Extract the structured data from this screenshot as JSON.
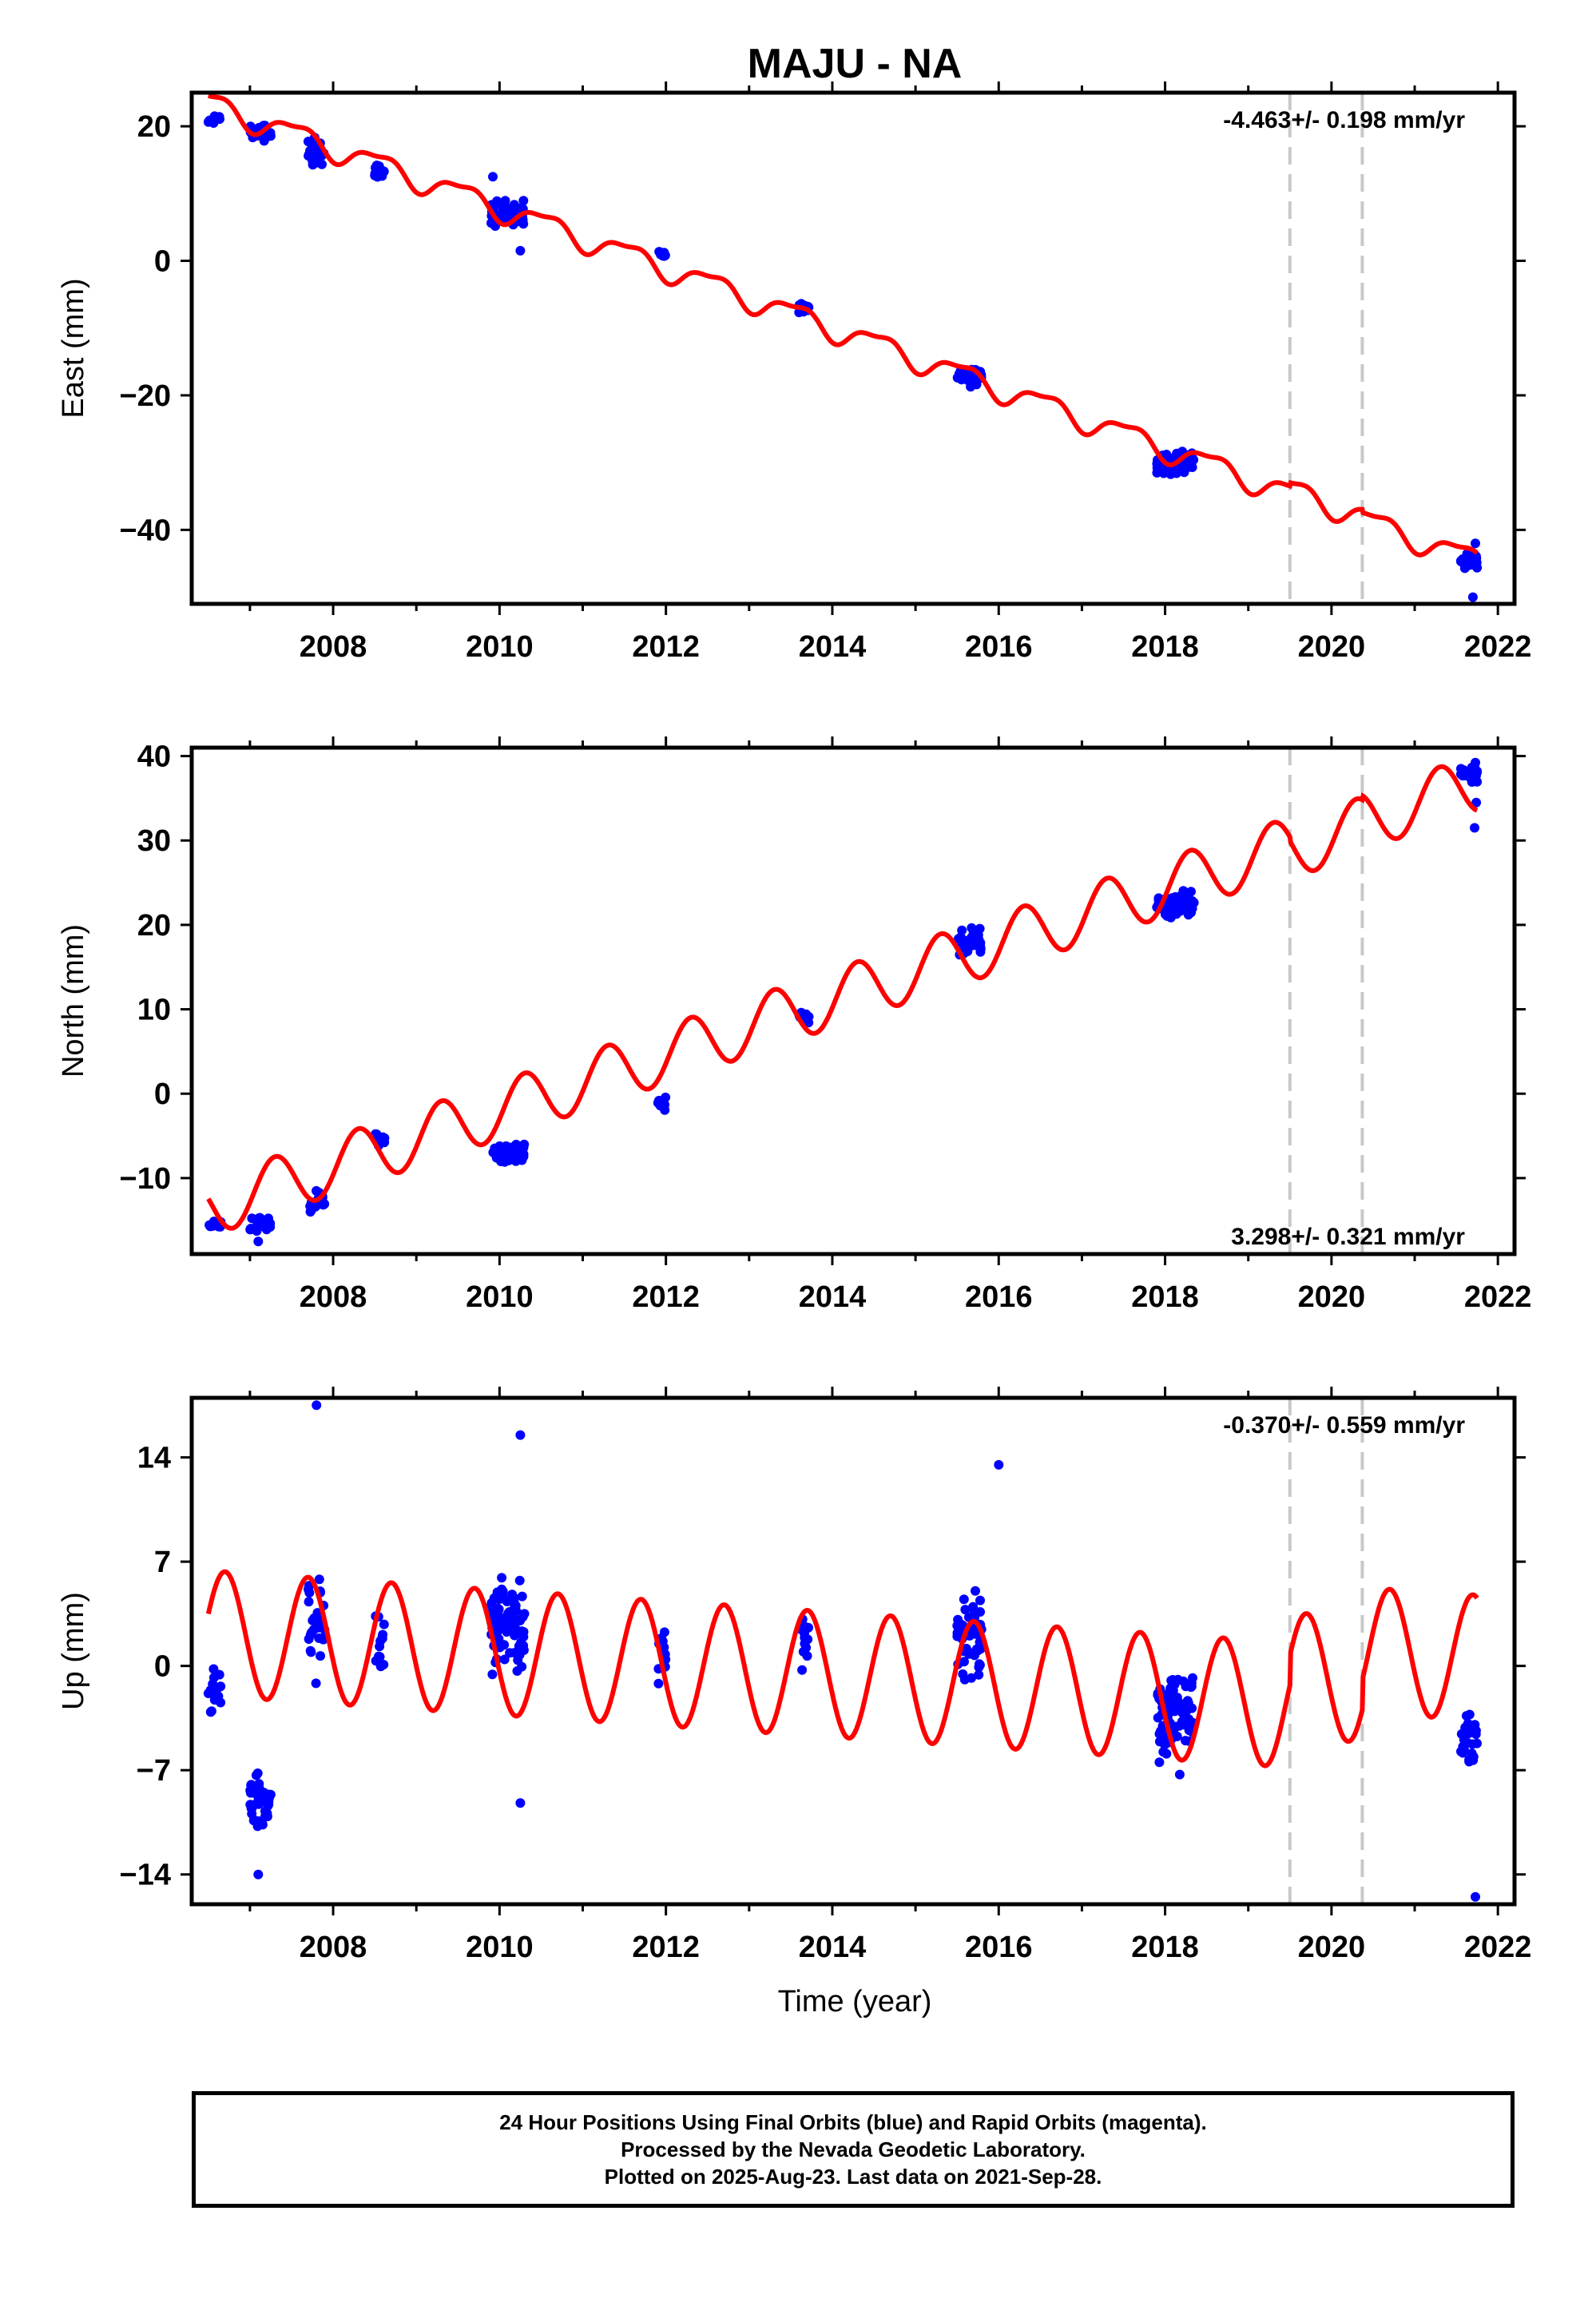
{
  "title": "MAJU - NA",
  "xlabel": "Time (year)",
  "footer": {
    "line1": "24 Hour Positions Using Final Orbits (blue) and Rapid Orbits (magenta).",
    "line2": "Processed by the Nevada Geodetic Laboratory.",
    "line3": "Plotted on 2025-Aug-23. Last data on 2021-Sep-28."
  },
  "colors": {
    "data": "#0000ff",
    "model": "#ff0000",
    "breaks": "#c8c8c8"
  },
  "chart_data": [
    {
      "type": "scatter",
      "name": "east",
      "ylabel": "East (mm)",
      "rate": "-4.463+/- 0.198 mm/yr",
      "rate_position": "top-right",
      "xlim": [
        2006.3,
        2022.2
      ],
      "ylim": [
        -51,
        25
      ],
      "xticks": [
        2008,
        2010,
        2012,
        2014,
        2016,
        2018,
        2020,
        2022
      ],
      "yticks": [
        20,
        0,
        -20,
        -40
      ],
      "ytick_labels": [
        "20",
        "0",
        "−20",
        "−40"
      ],
      "equipment_breaks": [
        2019.5,
        2020.37
      ],
      "model": {
        "intercept": 23.5,
        "trend": -4.463,
        "t0": 2006.5,
        "offsets": [
          [
            2019.5,
            0.5
          ],
          [
            2020.37,
            -0.5
          ]
        ],
        "seasonal": [
          {
            "amp": 1.7,
            "period": 1.0,
            "phase": 0.2
          },
          {
            "amp": 0.6,
            "period": 0.5,
            "phase": 0.7
          }
        ]
      },
      "data_epochs": [
        {
          "t0": 2006.5,
          "t1": 2006.65,
          "n": 14,
          "mean": 21.0,
          "spread": 1.4
        },
        {
          "t0": 2007.0,
          "t1": 2007.25,
          "n": 22,
          "mean": 19.0,
          "spread": 2.0
        },
        {
          "t0": 2007.7,
          "t1": 2007.9,
          "n": 28,
          "mean": 16.0,
          "spread": 2.8
        },
        {
          "t0": 2008.5,
          "t1": 2008.62,
          "n": 12,
          "mean": 13.5,
          "spread": 2.0
        },
        {
          "t0": 2009.9,
          "t1": 2010.3,
          "n": 60,
          "mean": 7.0,
          "spread": 2.5
        },
        {
          "t0": 2011.9,
          "t1": 2012.0,
          "n": 10,
          "mean": 1.0,
          "spread": 1.1
        },
        {
          "t0": 2013.6,
          "t1": 2013.72,
          "n": 12,
          "mean": -7.0,
          "spread": 1.1
        },
        {
          "t0": 2015.5,
          "t1": 2015.8,
          "n": 40,
          "mean": -17.0,
          "spread": 1.6
        },
        {
          "t0": 2017.9,
          "t1": 2018.35,
          "n": 80,
          "mean": -30.0,
          "spread": 2.5
        },
        {
          "t0": 2021.55,
          "t1": 2021.75,
          "n": 26,
          "mean": -44.5,
          "spread": 1.8
        }
      ],
      "outliers": [
        [
          2009.92,
          12.5
        ],
        [
          2010.25,
          1.5
        ],
        [
          2021.7,
          -50.0
        ],
        [
          2021.73,
          -42.0
        ]
      ]
    },
    {
      "type": "scatter",
      "name": "north",
      "ylabel": "North (mm)",
      "rate": "3.298+/- 0.321 mm/yr",
      "rate_position": "bottom-right",
      "xlim": [
        2006.3,
        2022.2
      ],
      "ylim": [
        -19,
        41
      ],
      "xticks": [
        2008,
        2010,
        2012,
        2014,
        2016,
        2018,
        2020,
        2022
      ],
      "yticks": [
        40,
        30,
        20,
        10,
        0,
        -10
      ],
      "ytick_labels": [
        "40",
        "30",
        "20",
        "10",
        "0",
        "−10"
      ],
      "equipment_breaks": [
        2019.5,
        2020.37
      ],
      "model": {
        "intercept": -13.5,
        "trend": 3.298,
        "t0": 2006.5,
        "offsets": [
          [
            2019.5,
            -0.5
          ],
          [
            2020.37,
            0.5
          ]
        ],
        "seasonal": [
          {
            "amp": 3.4,
            "period": 1.0,
            "phase": 0.45
          }
        ]
      },
      "data_epochs": [
        {
          "t0": 2006.5,
          "t1": 2006.65,
          "n": 14,
          "mean": -15.5,
          "spread": 1.1
        },
        {
          "t0": 2007.0,
          "t1": 2007.25,
          "n": 22,
          "mean": -15.5,
          "spread": 1.4
        },
        {
          "t0": 2007.7,
          "t1": 2007.9,
          "n": 20,
          "mean": -13.0,
          "spread": 1.8
        },
        {
          "t0": 2008.5,
          "t1": 2008.62,
          "n": 12,
          "mean": -5.5,
          "spread": 1.2
        },
        {
          "t0": 2009.9,
          "t1": 2010.3,
          "n": 60,
          "mean": -7.0,
          "spread": 1.5
        },
        {
          "t0": 2011.9,
          "t1": 2012.0,
          "n": 10,
          "mean": -1.0,
          "spread": 1.2
        },
        {
          "t0": 2013.6,
          "t1": 2013.72,
          "n": 12,
          "mean": 9.0,
          "spread": 1.1
        },
        {
          "t0": 2015.5,
          "t1": 2015.8,
          "n": 40,
          "mean": 18.0,
          "spread": 2.0
        },
        {
          "t0": 2017.9,
          "t1": 2018.35,
          "n": 80,
          "mean": 22.5,
          "spread": 1.8
        },
        {
          "t0": 2021.55,
          "t1": 2021.75,
          "n": 26,
          "mean": 38.0,
          "spread": 1.3
        }
      ],
      "outliers": [
        [
          2021.72,
          31.5
        ],
        [
          2021.74,
          34.5
        ],
        [
          2007.1,
          -17.5
        ]
      ]
    },
    {
      "type": "scatter",
      "name": "up",
      "ylabel": "Up (mm)",
      "rate": "-0.370+/- 0.559 mm/yr",
      "rate_position": "top-right",
      "xlim": [
        2006.3,
        2022.2
      ],
      "ylim": [
        -16,
        18
      ],
      "xticks": [
        2008,
        2010,
        2012,
        2014,
        2016,
        2018,
        2020,
        2022
      ],
      "yticks": [
        14,
        7,
        0,
        -7,
        -14
      ],
      "ytick_labels": [
        "14",
        "7",
        "0",
        "−7",
        "−14"
      ],
      "equipment_breaks": [
        2019.5,
        2020.37
      ],
      "model": {
        "intercept": 2.2,
        "trend": -0.37,
        "t0": 2006.5,
        "offsets": [
          [
            2019.5,
            2.0
          ],
          [
            2020.37,
            2.0
          ]
        ],
        "seasonal": [
          {
            "amp": 4.2,
            "period": 1.0,
            "phase": 0.05
          }
        ]
      },
      "data_epochs": [
        {
          "t0": 2006.5,
          "t1": 2006.65,
          "n": 14,
          "mean": -1.5,
          "spread": 2.5
        },
        {
          "t0": 2007.0,
          "t1": 2007.25,
          "n": 45,
          "mean": -9.0,
          "spread": 2.5
        },
        {
          "t0": 2007.7,
          "t1": 2007.9,
          "n": 30,
          "mean": 3.0,
          "spread": 5.0
        },
        {
          "t0": 2008.5,
          "t1": 2008.62,
          "n": 14,
          "mean": 1.0,
          "spread": 3.5
        },
        {
          "t0": 2009.9,
          "t1": 2010.3,
          "n": 90,
          "mean": 3.0,
          "spread": 4.5
        },
        {
          "t0": 2011.9,
          "t1": 2012.0,
          "n": 12,
          "mean": 1.0,
          "spread": 3.0
        },
        {
          "t0": 2013.6,
          "t1": 2013.72,
          "n": 14,
          "mean": 2.0,
          "spread": 2.5
        },
        {
          "t0": 2015.5,
          "t1": 2015.8,
          "n": 50,
          "mean": 2.0,
          "spread": 3.8
        },
        {
          "t0": 2017.9,
          "t1": 2018.35,
          "n": 90,
          "mean": -3.0,
          "spread": 3.8
        },
        {
          "t0": 2021.55,
          "t1": 2021.75,
          "n": 26,
          "mean": -4.5,
          "spread": 2.6
        }
      ],
      "outliers": [
        [
          2007.8,
          17.5
        ],
        [
          2010.25,
          15.5
        ],
        [
          2016.0,
          13.5
        ],
        [
          2021.73,
          -15.5
        ],
        [
          2010.25,
          -9.2
        ],
        [
          2007.1,
          -14.0
        ]
      ]
    }
  ]
}
